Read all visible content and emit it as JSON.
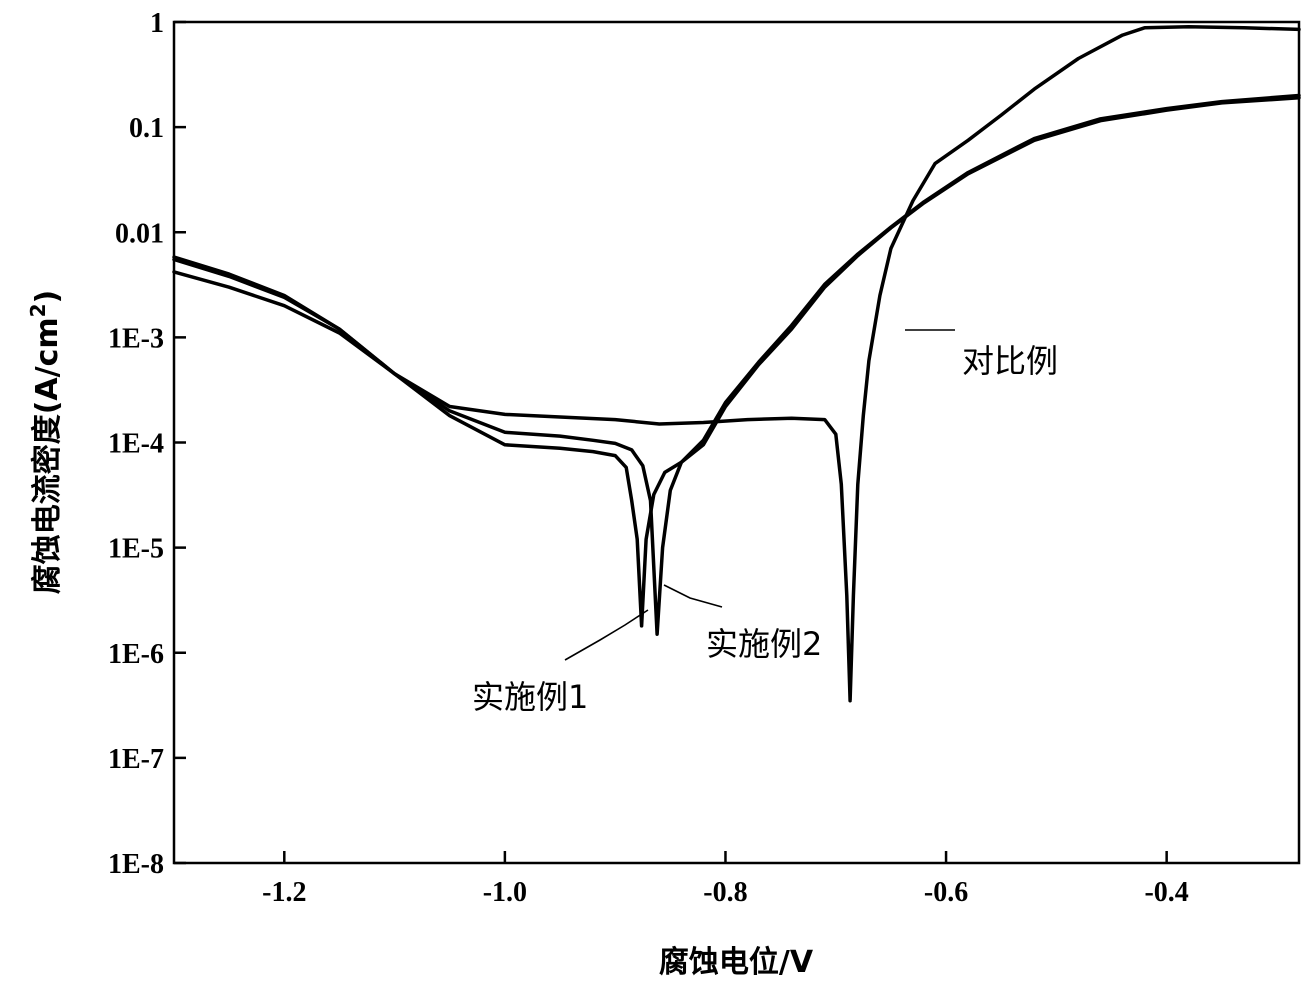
{
  "chart_data": {
    "type": "line",
    "xlabel": "腐蚀电位/V",
    "ylabel": "腐蚀电流密度(A/cm²)",
    "ylabel_main": "腐蚀电流密度(A/cm",
    "ylabel_sup": "2",
    "ylabel_close": ")",
    "xlim": [
      -1.3,
      -0.28
    ],
    "ylim": [
      1e-08,
      1
    ],
    "yscale": "log",
    "grid": false,
    "x_ticks": [
      {
        "value": -1.2,
        "label": "-1.2"
      },
      {
        "value": -1.0,
        "label": "-1.0"
      },
      {
        "value": -0.8,
        "label": "-0.8"
      },
      {
        "value": -0.6,
        "label": "-0.6"
      },
      {
        "value": -0.4,
        "label": "-0.4"
      }
    ],
    "y_ticks": [
      {
        "value": 1e-08,
        "label": "1E-8"
      },
      {
        "value": 1e-07,
        "label": "1E-7"
      },
      {
        "value": 1e-06,
        "label": "1E-6"
      },
      {
        "value": 1e-05,
        "label": "1E-5"
      },
      {
        "value": 0.0001,
        "label": "1E-4"
      },
      {
        "value": 0.001,
        "label": "1E-3"
      },
      {
        "value": 0.01,
        "label": "0.01"
      },
      {
        "value": 0.1,
        "label": "0.1"
      },
      {
        "value": 1,
        "label": "1"
      }
    ],
    "series": [
      {
        "name": "实施例1",
        "points": [
          [
            -1.3,
            0.0042
          ],
          [
            -1.25,
            0.003
          ],
          [
            -1.2,
            0.002
          ],
          [
            -1.15,
            0.0011
          ],
          [
            -1.1,
            0.00045
          ],
          [
            -1.05,
            0.00018
          ],
          [
            -1.0,
            9.5e-05
          ],
          [
            -0.95,
            8.8e-05
          ],
          [
            -0.92,
            8.2e-05
          ],
          [
            -0.9,
            7.5e-05
          ],
          [
            -0.89,
            5.8e-05
          ],
          [
            -0.885,
            2.8e-05
          ],
          [
            -0.88,
            1.2e-05
          ],
          [
            -0.876,
            1.8e-06
          ],
          [
            -0.872,
            1.2e-05
          ],
          [
            -0.865,
            3.2e-05
          ],
          [
            -0.855,
            5.2e-05
          ],
          [
            -0.84,
            6.5e-05
          ],
          [
            -0.82,
            9.5e-05
          ],
          [
            -0.8,
            0.00022
          ],
          [
            -0.77,
            0.00055
          ],
          [
            -0.74,
            0.0012
          ],
          [
            -0.71,
            0.003
          ],
          [
            -0.68,
            0.006
          ],
          [
            -0.65,
            0.011
          ],
          [
            -0.62,
            0.019
          ],
          [
            -0.58,
            0.036
          ],
          [
            -0.52,
            0.075
          ],
          [
            -0.46,
            0.115
          ],
          [
            -0.4,
            0.145
          ],
          [
            -0.35,
            0.17
          ],
          [
            -0.28,
            0.19
          ]
        ]
      },
      {
        "name": "实施例2",
        "points": [
          [
            -1.3,
            0.0055
          ],
          [
            -1.25,
            0.0038
          ],
          [
            -1.2,
            0.0024
          ],
          [
            -1.15,
            0.0012
          ],
          [
            -1.1,
            0.00045
          ],
          [
            -1.05,
            0.0002
          ],
          [
            -1.0,
            0.000125
          ],
          [
            -0.95,
            0.000115
          ],
          [
            -0.92,
            0.000105
          ],
          [
            -0.9,
            9.8e-05
          ],
          [
            -0.885,
            8.5e-05
          ],
          [
            -0.875,
            6e-05
          ],
          [
            -0.868,
            2.8e-05
          ],
          [
            -0.862,
            1.5e-06
          ],
          [
            -0.857,
            1e-05
          ],
          [
            -0.85,
            3.5e-05
          ],
          [
            -0.84,
            6.5e-05
          ],
          [
            -0.82,
            0.000105
          ],
          [
            -0.8,
            0.00024
          ],
          [
            -0.77,
            0.00058
          ],
          [
            -0.74,
            0.0013
          ],
          [
            -0.71,
            0.0032
          ],
          [
            -0.68,
            0.0062
          ],
          [
            -0.65,
            0.0112
          ],
          [
            -0.62,
            0.0195
          ],
          [
            -0.58,
            0.037
          ],
          [
            -0.52,
            0.078
          ],
          [
            -0.46,
            0.12
          ],
          [
            -0.4,
            0.15
          ],
          [
            -0.35,
            0.175
          ],
          [
            -0.28,
            0.2
          ]
        ]
      },
      {
        "name": "对比例",
        "points": [
          [
            -1.3,
            0.0058
          ],
          [
            -1.25,
            0.004
          ],
          [
            -1.2,
            0.0025
          ],
          [
            -1.15,
            0.0012
          ],
          [
            -1.1,
            0.00045
          ],
          [
            -1.05,
            0.00022
          ],
          [
            -1.0,
            0.000185
          ],
          [
            -0.95,
            0.000175
          ],
          [
            -0.9,
            0.000165
          ],
          [
            -0.86,
            0.00015
          ],
          [
            -0.82,
            0.000155
          ],
          [
            -0.78,
            0.000165
          ],
          [
            -0.74,
            0.00017
          ],
          [
            -0.71,
            0.000165
          ],
          [
            -0.7,
            0.00012
          ],
          [
            -0.695,
            4e-05
          ],
          [
            -0.69,
            3.5e-06
          ],
          [
            -0.687,
            3.5e-07
          ],
          [
            -0.684,
            3.5e-06
          ],
          [
            -0.68,
            4e-05
          ],
          [
            -0.675,
            0.00018
          ],
          [
            -0.67,
            0.0006
          ],
          [
            -0.66,
            0.0025
          ],
          [
            -0.65,
            0.007
          ],
          [
            -0.63,
            0.02
          ],
          [
            -0.61,
            0.045
          ],
          [
            -0.58,
            0.075
          ],
          [
            -0.55,
            0.13
          ],
          [
            -0.52,
            0.23
          ],
          [
            -0.48,
            0.45
          ],
          [
            -0.44,
            0.75
          ],
          [
            -0.42,
            0.88
          ],
          [
            -0.38,
            0.9
          ],
          [
            -0.33,
            0.88
          ],
          [
            -0.28,
            0.85
          ]
        ]
      }
    ],
    "annotations": [
      {
        "text": "对比例",
        "series": "对比例"
      },
      {
        "text": "实施例1",
        "series": "实施例1"
      },
      {
        "text": "实施例2",
        "series": "实施例2"
      }
    ]
  }
}
